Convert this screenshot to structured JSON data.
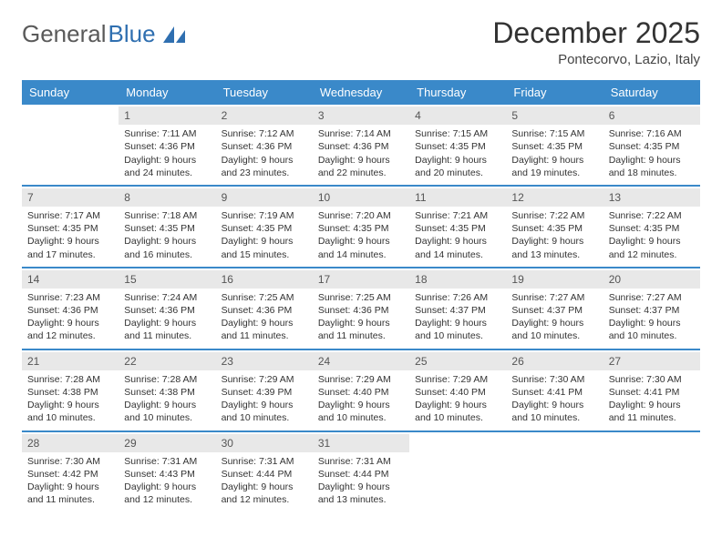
{
  "logo": {
    "text1": "General",
    "text2": "Blue"
  },
  "title": "December 2025",
  "location": "Pontecorvo, Lazio, Italy",
  "colors": {
    "header_bg": "#3a89c9",
    "daynum_bg": "#e8e8e8",
    "rule": "#3a89c9"
  },
  "dayNames": [
    "Sunday",
    "Monday",
    "Tuesday",
    "Wednesday",
    "Thursday",
    "Friday",
    "Saturday"
  ],
  "weeks": [
    [
      {
        "n": "",
        "sr": "",
        "ss": "",
        "dl1": "",
        "dl2": ""
      },
      {
        "n": "1",
        "sr": "Sunrise: 7:11 AM",
        "ss": "Sunset: 4:36 PM",
        "dl1": "Daylight: 9 hours",
        "dl2": "and 24 minutes."
      },
      {
        "n": "2",
        "sr": "Sunrise: 7:12 AM",
        "ss": "Sunset: 4:36 PM",
        "dl1": "Daylight: 9 hours",
        "dl2": "and 23 minutes."
      },
      {
        "n": "3",
        "sr": "Sunrise: 7:14 AM",
        "ss": "Sunset: 4:36 PM",
        "dl1": "Daylight: 9 hours",
        "dl2": "and 22 minutes."
      },
      {
        "n": "4",
        "sr": "Sunrise: 7:15 AM",
        "ss": "Sunset: 4:35 PM",
        "dl1": "Daylight: 9 hours",
        "dl2": "and 20 minutes."
      },
      {
        "n": "5",
        "sr": "Sunrise: 7:15 AM",
        "ss": "Sunset: 4:35 PM",
        "dl1": "Daylight: 9 hours",
        "dl2": "and 19 minutes."
      },
      {
        "n": "6",
        "sr": "Sunrise: 7:16 AM",
        "ss": "Sunset: 4:35 PM",
        "dl1": "Daylight: 9 hours",
        "dl2": "and 18 minutes."
      }
    ],
    [
      {
        "n": "7",
        "sr": "Sunrise: 7:17 AM",
        "ss": "Sunset: 4:35 PM",
        "dl1": "Daylight: 9 hours",
        "dl2": "and 17 minutes."
      },
      {
        "n": "8",
        "sr": "Sunrise: 7:18 AM",
        "ss": "Sunset: 4:35 PM",
        "dl1": "Daylight: 9 hours",
        "dl2": "and 16 minutes."
      },
      {
        "n": "9",
        "sr": "Sunrise: 7:19 AM",
        "ss": "Sunset: 4:35 PM",
        "dl1": "Daylight: 9 hours",
        "dl2": "and 15 minutes."
      },
      {
        "n": "10",
        "sr": "Sunrise: 7:20 AM",
        "ss": "Sunset: 4:35 PM",
        "dl1": "Daylight: 9 hours",
        "dl2": "and 14 minutes."
      },
      {
        "n": "11",
        "sr": "Sunrise: 7:21 AM",
        "ss": "Sunset: 4:35 PM",
        "dl1": "Daylight: 9 hours",
        "dl2": "and 14 minutes."
      },
      {
        "n": "12",
        "sr": "Sunrise: 7:22 AM",
        "ss": "Sunset: 4:35 PM",
        "dl1": "Daylight: 9 hours",
        "dl2": "and 13 minutes."
      },
      {
        "n": "13",
        "sr": "Sunrise: 7:22 AM",
        "ss": "Sunset: 4:35 PM",
        "dl1": "Daylight: 9 hours",
        "dl2": "and 12 minutes."
      }
    ],
    [
      {
        "n": "14",
        "sr": "Sunrise: 7:23 AM",
        "ss": "Sunset: 4:36 PM",
        "dl1": "Daylight: 9 hours",
        "dl2": "and 12 minutes."
      },
      {
        "n": "15",
        "sr": "Sunrise: 7:24 AM",
        "ss": "Sunset: 4:36 PM",
        "dl1": "Daylight: 9 hours",
        "dl2": "and 11 minutes."
      },
      {
        "n": "16",
        "sr": "Sunrise: 7:25 AM",
        "ss": "Sunset: 4:36 PM",
        "dl1": "Daylight: 9 hours",
        "dl2": "and 11 minutes."
      },
      {
        "n": "17",
        "sr": "Sunrise: 7:25 AM",
        "ss": "Sunset: 4:36 PM",
        "dl1": "Daylight: 9 hours",
        "dl2": "and 11 minutes."
      },
      {
        "n": "18",
        "sr": "Sunrise: 7:26 AM",
        "ss": "Sunset: 4:37 PM",
        "dl1": "Daylight: 9 hours",
        "dl2": "and 10 minutes."
      },
      {
        "n": "19",
        "sr": "Sunrise: 7:27 AM",
        "ss": "Sunset: 4:37 PM",
        "dl1": "Daylight: 9 hours",
        "dl2": "and 10 minutes."
      },
      {
        "n": "20",
        "sr": "Sunrise: 7:27 AM",
        "ss": "Sunset: 4:37 PM",
        "dl1": "Daylight: 9 hours",
        "dl2": "and 10 minutes."
      }
    ],
    [
      {
        "n": "21",
        "sr": "Sunrise: 7:28 AM",
        "ss": "Sunset: 4:38 PM",
        "dl1": "Daylight: 9 hours",
        "dl2": "and 10 minutes."
      },
      {
        "n": "22",
        "sr": "Sunrise: 7:28 AM",
        "ss": "Sunset: 4:38 PM",
        "dl1": "Daylight: 9 hours",
        "dl2": "and 10 minutes."
      },
      {
        "n": "23",
        "sr": "Sunrise: 7:29 AM",
        "ss": "Sunset: 4:39 PM",
        "dl1": "Daylight: 9 hours",
        "dl2": "and 10 minutes."
      },
      {
        "n": "24",
        "sr": "Sunrise: 7:29 AM",
        "ss": "Sunset: 4:40 PM",
        "dl1": "Daylight: 9 hours",
        "dl2": "and 10 minutes."
      },
      {
        "n": "25",
        "sr": "Sunrise: 7:29 AM",
        "ss": "Sunset: 4:40 PM",
        "dl1": "Daylight: 9 hours",
        "dl2": "and 10 minutes."
      },
      {
        "n": "26",
        "sr": "Sunrise: 7:30 AM",
        "ss": "Sunset: 4:41 PM",
        "dl1": "Daylight: 9 hours",
        "dl2": "and 10 minutes."
      },
      {
        "n": "27",
        "sr": "Sunrise: 7:30 AM",
        "ss": "Sunset: 4:41 PM",
        "dl1": "Daylight: 9 hours",
        "dl2": "and 11 minutes."
      }
    ],
    [
      {
        "n": "28",
        "sr": "Sunrise: 7:30 AM",
        "ss": "Sunset: 4:42 PM",
        "dl1": "Daylight: 9 hours",
        "dl2": "and 11 minutes."
      },
      {
        "n": "29",
        "sr": "Sunrise: 7:31 AM",
        "ss": "Sunset: 4:43 PM",
        "dl1": "Daylight: 9 hours",
        "dl2": "and 12 minutes."
      },
      {
        "n": "30",
        "sr": "Sunrise: 7:31 AM",
        "ss": "Sunset: 4:44 PM",
        "dl1": "Daylight: 9 hours",
        "dl2": "and 12 minutes."
      },
      {
        "n": "31",
        "sr": "Sunrise: 7:31 AM",
        "ss": "Sunset: 4:44 PM",
        "dl1": "Daylight: 9 hours",
        "dl2": "and 13 minutes."
      },
      {
        "n": "",
        "sr": "",
        "ss": "",
        "dl1": "",
        "dl2": ""
      },
      {
        "n": "",
        "sr": "",
        "ss": "",
        "dl1": "",
        "dl2": ""
      },
      {
        "n": "",
        "sr": "",
        "ss": "",
        "dl1": "",
        "dl2": ""
      }
    ]
  ]
}
